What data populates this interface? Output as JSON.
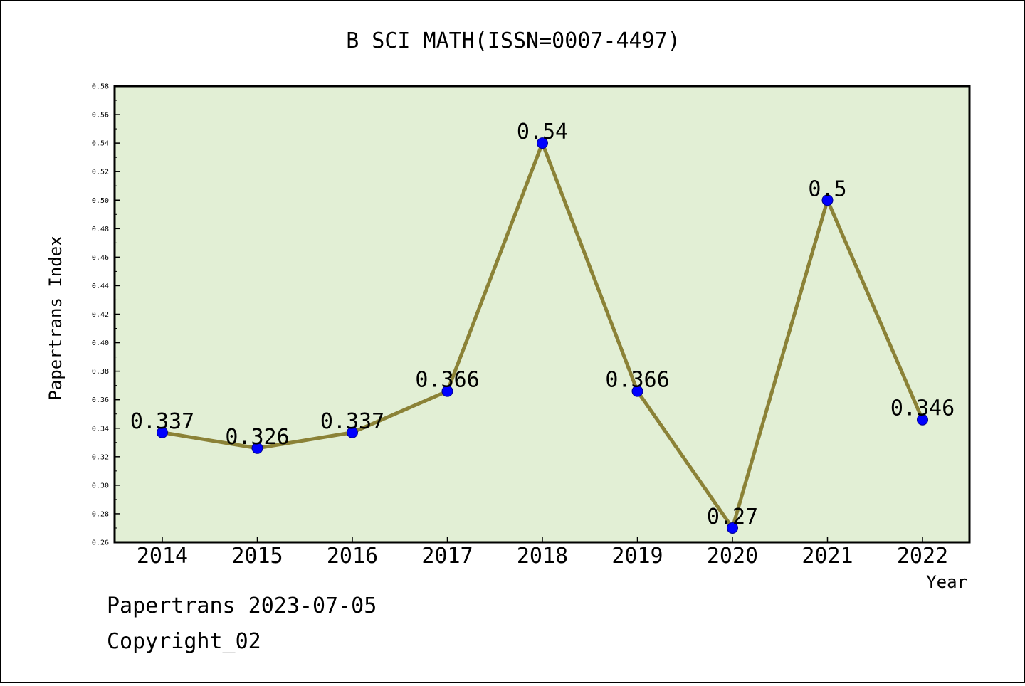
{
  "footer": {
    "line1": "Papertrans 2023-07-05",
    "line2": "Copyright_02"
  },
  "chart_data": {
    "type": "line",
    "title": "B SCI MATH(ISSN=0007-4497)",
    "xlabel": "Year",
    "ylabel": "Papertrans Index",
    "categories": [
      "2014",
      "2015",
      "2016",
      "2017",
      "2018",
      "2019",
      "2020",
      "2021",
      "2022"
    ],
    "series": [
      {
        "values": [
          0.337,
          0.326,
          0.337,
          0.366,
          0.54,
          0.366,
          0.27,
          0.5,
          0.346
        ],
        "labels": [
          "0.337",
          "0.326",
          "0.337",
          "0.366",
          "0.54",
          "0.366",
          "0.27",
          "0.5",
          "0.346"
        ]
      }
    ],
    "ylim": [
      0.26,
      0.58
    ],
    "yticks": [
      "0.26",
      "0.28",
      "0.30",
      "0.32",
      "0.34",
      "0.36",
      "0.38",
      "0.40",
      "0.42",
      "0.44",
      "0.46",
      "0.48",
      "0.50",
      "0.52",
      "0.54",
      "0.56",
      "0.58"
    ],
    "grid": false,
    "legend": "none",
    "colors": {
      "plot_background": "#e2efd5",
      "line": "#8b8237",
      "marker": "#0000ff",
      "axis": "#000000"
    }
  }
}
